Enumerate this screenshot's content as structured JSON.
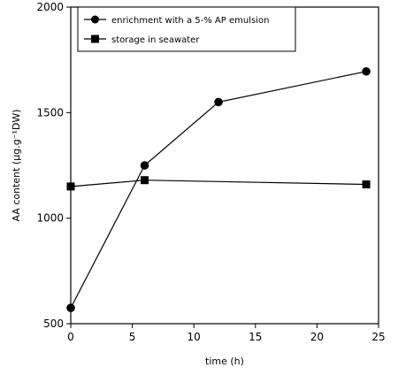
{
  "chart_data": {
    "type": "line",
    "title": "",
    "xlabel": "time (h)",
    "ylabel": "AA content (µg.g⁻¹DW)",
    "xlim": [
      0,
      25
    ],
    "ylim": [
      500,
      2000
    ],
    "xticks": [
      0,
      5,
      10,
      15,
      20,
      25
    ],
    "yticks": [
      500,
      1000,
      1500,
      2000
    ],
    "grid": false,
    "legend_position": "top-left",
    "series": [
      {
        "name": "enrichment with a 5-% AP emulsion",
        "marker": "circle",
        "x": [
          0,
          6,
          12,
          24
        ],
        "y": [
          575,
          1250,
          1550,
          1695
        ]
      },
      {
        "name": "storage in seawater",
        "marker": "square",
        "x": [
          0,
          6,
          24
        ],
        "y": [
          1150,
          1180,
          1160
        ]
      }
    ]
  }
}
